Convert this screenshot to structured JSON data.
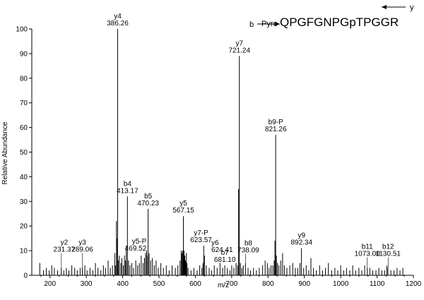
{
  "chart_data": {
    "type": "bar",
    "xlabel": "m/z",
    "ylabel": "Relative Abundance",
    "xlim": [
      150,
      1200
    ],
    "ylim": [
      0,
      100
    ],
    "x_ticks": [
      200,
      300,
      400,
      500,
      600,
      700,
      800,
      900,
      1000,
      1100,
      1200
    ],
    "y_ticks": [
      0,
      10,
      20,
      30,
      40,
      50,
      60,
      70,
      80,
      90,
      100
    ],
    "sequence": {
      "prefix": "Pyro",
      "peptide": "QPGFGNPGpTPGGR",
      "b_label": "b",
      "y_label": "y"
    },
    "labeled_peaks": [
      {
        "ion": "y2",
        "mz": 231.37,
        "mz_label": "231.37",
        "value": 3
      },
      {
        "ion": "y3",
        "mz": 289.06,
        "mz_label": "289.06",
        "value": 3
      },
      {
        "ion": "y4",
        "mz": 386.26,
        "mz_label": "386.26",
        "value": 100
      },
      {
        "ion": "b4",
        "mz": 413.17,
        "mz_label": "413.17",
        "value": 32
      },
      {
        "ion": "y5-P",
        "mz": 469.52,
        "mz_label": "469.52",
        "value": 8
      },
      {
        "ion": "b5",
        "mz": 470.23,
        "mz_label": "470.23",
        "value": 27
      },
      {
        "ion": "y5",
        "mz": 567.15,
        "mz_label": "567.15",
        "value": 24
      },
      {
        "ion": "y7-P",
        "mz": 623.57,
        "mz_label": "623.57",
        "value": 12
      },
      {
        "ion": "y6",
        "mz": 624.41,
        "mz_label": "624.41",
        "value": 8
      },
      {
        "ion": "b7",
        "mz": 681.1,
        "mz_label": "681.10",
        "value": 4
      },
      {
        "ion": "y7",
        "mz": 721.24,
        "mz_label": "721.24",
        "value": 89
      },
      {
        "ion": "b8",
        "mz": 738.09,
        "mz_label": "738.09",
        "value": 5
      },
      {
        "ion": "b9-P",
        "mz": 821.26,
        "mz_label": "821.26",
        "value": 57
      },
      {
        "ion": "y9",
        "mz": 892.34,
        "mz_label": "892.34",
        "value": 11
      },
      {
        "ion": "b11",
        "mz": 1073.0,
        "mz_label": "1073.00",
        "value": 3
      },
      {
        "ion": "b12",
        "mz": 1130.51,
        "mz_label": "1130.51",
        "value": 3
      }
    ],
    "peaks": [
      [
        172,
        5
      ],
      [
        182,
        2
      ],
      [
        190,
        3
      ],
      [
        198,
        2
      ],
      [
        205,
        4
      ],
      [
        212,
        3
      ],
      [
        221,
        2
      ],
      [
        231,
        3
      ],
      [
        238,
        2
      ],
      [
        245,
        3
      ],
      [
        252,
        2
      ],
      [
        260,
        4
      ],
      [
        268,
        3
      ],
      [
        275,
        2
      ],
      [
        283,
        3
      ],
      [
        289,
        3
      ],
      [
        296,
        4
      ],
      [
        302,
        2
      ],
      [
        310,
        3
      ],
      [
        318,
        2
      ],
      [
        325,
        5
      ],
      [
        332,
        3
      ],
      [
        340,
        2
      ],
      [
        347,
        4
      ],
      [
        353,
        3
      ],
      [
        360,
        6
      ],
      [
        366,
        3
      ],
      [
        372,
        4
      ],
      [
        378,
        9
      ],
      [
        380,
        4
      ],
      [
        383,
        22
      ],
      [
        384,
        15
      ],
      [
        386,
        100
      ],
      [
        388,
        6
      ],
      [
        391,
        8
      ],
      [
        395,
        5
      ],
      [
        398,
        7
      ],
      [
        402,
        4
      ],
      [
        405,
        8
      ],
      [
        408,
        6
      ],
      [
        410,
        12
      ],
      [
        413,
        32
      ],
      [
        416,
        6
      ],
      [
        420,
        4
      ],
      [
        425,
        5
      ],
      [
        430,
        3
      ],
      [
        436,
        6
      ],
      [
        441,
        4
      ],
      [
        446,
        5
      ],
      [
        451,
        8
      ],
      [
        456,
        5
      ],
      [
        460,
        7
      ],
      [
        463,
        9
      ],
      [
        466,
        10
      ],
      [
        469,
        8
      ],
      [
        470,
        27
      ],
      [
        473,
        9
      ],
      [
        477,
        6
      ],
      [
        482,
        7
      ],
      [
        487,
        4
      ],
      [
        492,
        6
      ],
      [
        498,
        3
      ],
      [
        505,
        5
      ],
      [
        512,
        3
      ],
      [
        520,
        4
      ],
      [
        528,
        2
      ],
      [
        536,
        4
      ],
      [
        545,
        3
      ],
      [
        552,
        4
      ],
      [
        558,
        6
      ],
      [
        561,
        10
      ],
      [
        563,
        9
      ],
      [
        565,
        10
      ],
      [
        567,
        24
      ],
      [
        569,
        10
      ],
      [
        571,
        8
      ],
      [
        573,
        6
      ],
      [
        575,
        9
      ],
      [
        577,
        5
      ],
      [
        580,
        3
      ],
      [
        588,
        2
      ],
      [
        596,
        3
      ],
      [
        605,
        2
      ],
      [
        612,
        4
      ],
      [
        618,
        3
      ],
      [
        621,
        5
      ],
      [
        623,
        12
      ],
      [
        625,
        8
      ],
      [
        630,
        4
      ],
      [
        638,
        3
      ],
      [
        645,
        2
      ],
      [
        652,
        4
      ],
      [
        660,
        3
      ],
      [
        668,
        5
      ],
      [
        675,
        3
      ],
      [
        681,
        4
      ],
      [
        688,
        3
      ],
      [
        695,
        2
      ],
      [
        700,
        4
      ],
      [
        706,
        3
      ],
      [
        712,
        5
      ],
      [
        716,
        4
      ],
      [
        719,
        35
      ],
      [
        721,
        89
      ],
      [
        724,
        5
      ],
      [
        728,
        3
      ],
      [
        732,
        4
      ],
      [
        738,
        5
      ],
      [
        745,
        3
      ],
      [
        752,
        2
      ],
      [
        760,
        3
      ],
      [
        768,
        2
      ],
      [
        776,
        3
      ],
      [
        785,
        4
      ],
      [
        792,
        6
      ],
      [
        798,
        5
      ],
      [
        803,
        3
      ],
      [
        808,
        4
      ],
      [
        813,
        4
      ],
      [
        817,
        6
      ],
      [
        819,
        14
      ],
      [
        821,
        57
      ],
      [
        823,
        8
      ],
      [
        826,
        5
      ],
      [
        830,
        4
      ],
      [
        835,
        6
      ],
      [
        840,
        9
      ],
      [
        845,
        4
      ],
      [
        852,
        3
      ],
      [
        860,
        4
      ],
      [
        868,
        5
      ],
      [
        875,
        3
      ],
      [
        882,
        3
      ],
      [
        888,
        5
      ],
      [
        892,
        11
      ],
      [
        898,
        3
      ],
      [
        905,
        4
      ],
      [
        912,
        2
      ],
      [
        918,
        7
      ],
      [
        925,
        3
      ],
      [
        933,
        2
      ],
      [
        942,
        4
      ],
      [
        950,
        2
      ],
      [
        958,
        3
      ],
      [
        966,
        5
      ],
      [
        975,
        2
      ],
      [
        984,
        3
      ],
      [
        992,
        2
      ],
      [
        1000,
        4
      ],
      [
        1008,
        2
      ],
      [
        1016,
        3
      ],
      [
        1025,
        2
      ],
      [
        1033,
        4
      ],
      [
        1041,
        2
      ],
      [
        1050,
        3
      ],
      [
        1058,
        2
      ],
      [
        1066,
        4
      ],
      [
        1073,
        3
      ],
      [
        1080,
        3
      ],
      [
        1088,
        2
      ],
      [
        1097,
        2
      ],
      [
        1105,
        3
      ],
      [
        1113,
        2
      ],
      [
        1121,
        2
      ],
      [
        1127,
        4
      ],
      [
        1130,
        3
      ],
      [
        1138,
        2
      ],
      [
        1147,
        2
      ],
      [
        1155,
        3
      ],
      [
        1163,
        2
      ],
      [
        1171,
        3
      ]
    ]
  }
}
